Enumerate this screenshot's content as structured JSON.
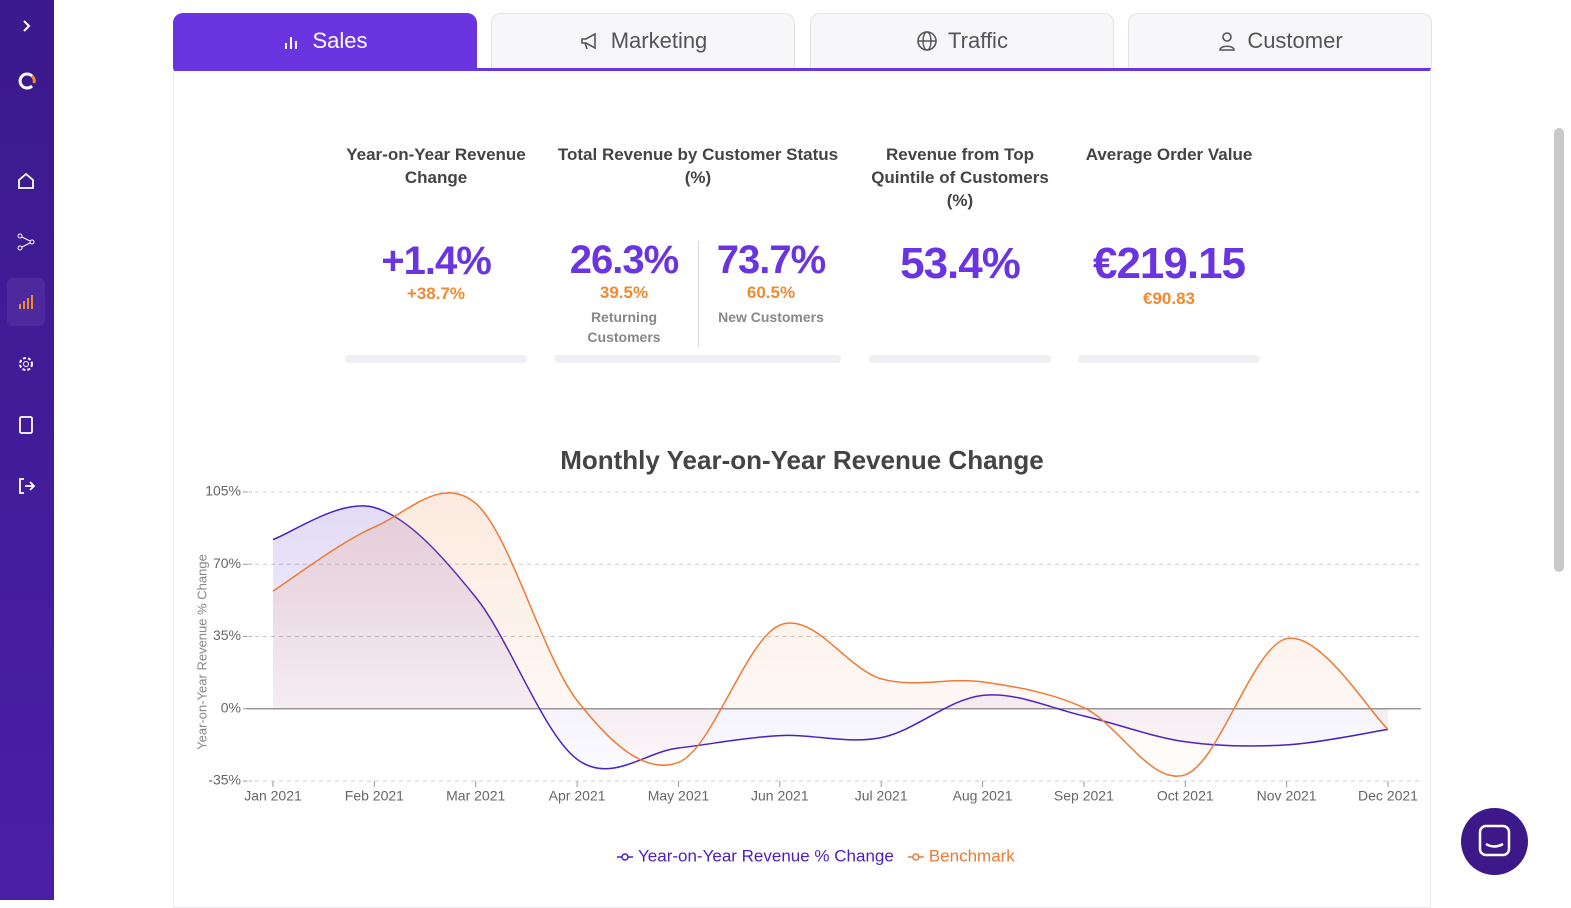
{
  "tabs": [
    "Sales",
    "Marketing",
    "Traffic",
    "Customer"
  ],
  "kpis": [
    {
      "title": "Year-on-Year Revenue Change",
      "value": "+1.4%",
      "sub": "+38.7%"
    },
    {
      "title": "Total Revenue by Customer Status (%)",
      "parts": [
        {
          "value": "26.3%",
          "sub": "39.5%",
          "label": "Returning Customers"
        },
        {
          "value": "73.7%",
          "sub": "60.5%",
          "label": "New Customers"
        }
      ]
    },
    {
      "title": "Revenue from Top Quintile of Customers (%)",
      "value": "53.4%"
    },
    {
      "title": "Average Order Value",
      "value": "€219.15",
      "sub": "€90.83"
    }
  ],
  "chart_data": {
    "type": "line",
    "title": "Monthly Year-on-Year Revenue Change",
    "y_label": "Year-on-Year Revenue % Change",
    "categories": [
      "Jan 2021",
      "Feb 2021",
      "Mar 2021",
      "Apr 2021",
      "May 2021",
      "Jun 2021",
      "Jul 2021",
      "Aug 2021",
      "Sep 2021",
      "Oct 2021",
      "Nov 2021",
      "Dec 2021"
    ],
    "series": [
      {
        "name": "Year-on-Year Revenue % Change",
        "color": "#4a1fc4",
        "values": [
          82,
          97.5,
          54,
          -24.5,
          -19,
          -13,
          -14,
          6.5,
          -3.5,
          -16,
          -17.5,
          -10
        ]
      },
      {
        "name": "Benchmark",
        "color": "#ee7a35",
        "values": [
          57,
          88,
          99.5,
          4,
          -26,
          40.5,
          14.5,
          13,
          0.5,
          -32,
          34,
          -10
        ]
      }
    ],
    "ylim": [
      -35,
      105
    ],
    "yticks": [
      {
        "value": -35,
        "label": "-35%"
      },
      {
        "value": 0,
        "label": "0%"
      },
      {
        "value": 35,
        "label": "35%"
      },
      {
        "value": 70,
        "label": "70%"
      },
      {
        "value": 105,
        "label": "105%"
      }
    ],
    "grid": true
  }
}
